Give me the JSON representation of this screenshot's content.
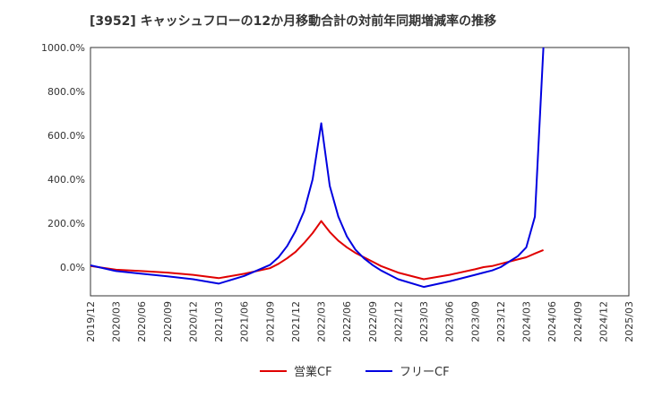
{
  "chart_data": {
    "type": "line",
    "title": "[3952]  キャッシュフローの12か月移動合計の対前年同期増減率の推移",
    "xlabel": "",
    "ylabel": "",
    "x_ticks": [
      "2019/12",
      "2020/03",
      "2020/06",
      "2020/09",
      "2020/12",
      "2021/03",
      "2021/06",
      "2021/09",
      "2021/12",
      "2022/03",
      "2022/06",
      "2022/09",
      "2022/12",
      "2023/03",
      "2023/06",
      "2023/09",
      "2023/12",
      "2024/03",
      "2024/06",
      "2024/09",
      "2024/12",
      "2025/03"
    ],
    "y_ticks": [
      "1000.0%",
      "800.0%",
      "600.0%",
      "400.0%",
      "200.0%",
      "0.0%"
    ],
    "y_tick_values": [
      1000,
      800,
      600,
      400,
      200,
      0
    ],
    "ylim": [
      -135,
      1000
    ],
    "grid": true,
    "legend_position": "bottom",
    "series": [
      {
        "name": "営業CF",
        "color": "#e00000",
        "points": [
          [
            "2019/12",
            5
          ],
          [
            "2020/03",
            -12
          ],
          [
            "2020/06",
            -18
          ],
          [
            "2020/09",
            -25
          ],
          [
            "2020/12",
            -35
          ],
          [
            "2021/03",
            -50
          ],
          [
            "2021/06",
            -30
          ],
          [
            "2021/09",
            -5
          ],
          [
            "2021/10",
            15
          ],
          [
            "2021/11",
            40
          ],
          [
            "2021/12",
            70
          ],
          [
            "2022/01",
            110
          ],
          [
            "2022/02",
            155
          ],
          [
            "2022/03",
            210
          ],
          [
            "2022/04",
            160
          ],
          [
            "2022/05",
            120
          ],
          [
            "2022/06",
            90
          ],
          [
            "2022/07",
            65
          ],
          [
            "2022/08",
            45
          ],
          [
            "2022/09",
            25
          ],
          [
            "2022/10",
            5
          ],
          [
            "2022/11",
            -10
          ],
          [
            "2022/12",
            -25
          ],
          [
            "2023/03",
            -55
          ],
          [
            "2023/06",
            -35
          ],
          [
            "2023/09",
            -10
          ],
          [
            "2023/10",
            0
          ],
          [
            "2023/11",
            5
          ],
          [
            "2023/12",
            15
          ],
          [
            "2024/01",
            25
          ],
          [
            "2024/02",
            35
          ],
          [
            "2024/03",
            45
          ],
          [
            "2024/04",
            62
          ],
          [
            "2024/05",
            78
          ]
        ]
      },
      {
        "name": "フリーCF",
        "color": "#0000e0",
        "points": [
          [
            "2019/12",
            8
          ],
          [
            "2020/03",
            -18
          ],
          [
            "2020/06",
            -30
          ],
          [
            "2020/09",
            -42
          ],
          [
            "2020/12",
            -55
          ],
          [
            "2021/03",
            -75
          ],
          [
            "2021/06",
            -40
          ],
          [
            "2021/09",
            10
          ],
          [
            "2021/10",
            45
          ],
          [
            "2021/11",
            95
          ],
          [
            "2021/12",
            165
          ],
          [
            "2022/01",
            255
          ],
          [
            "2022/02",
            400
          ],
          [
            "2022/03",
            655
          ],
          [
            "2022/04",
            370
          ],
          [
            "2022/05",
            230
          ],
          [
            "2022/06",
            140
          ],
          [
            "2022/07",
            80
          ],
          [
            "2022/08",
            40
          ],
          [
            "2022/09",
            10
          ],
          [
            "2022/10",
            -15
          ],
          [
            "2022/11",
            -35
          ],
          [
            "2022/12",
            -55
          ],
          [
            "2023/03",
            -90
          ],
          [
            "2023/06",
            -65
          ],
          [
            "2023/09",
            -35
          ],
          [
            "2023/10",
            -25
          ],
          [
            "2023/11",
            -15
          ],
          [
            "2023/12",
            0
          ],
          [
            "2024/01",
            25
          ],
          [
            "2024/02",
            50
          ],
          [
            "2024/03",
            90
          ],
          [
            "2024/04",
            230
          ],
          [
            "2024/05",
            1000
          ]
        ]
      }
    ]
  }
}
